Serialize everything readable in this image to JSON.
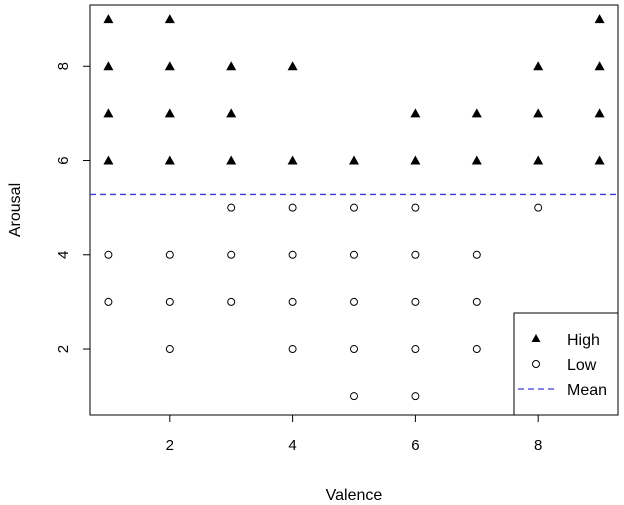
{
  "chart_data": {
    "type": "scatter",
    "title": "",
    "xlabel": "Valence",
    "ylabel": "Arousal",
    "xlim": [
      0.7,
      9.3
    ],
    "ylim": [
      0.6,
      9.3
    ],
    "xticks": [
      2,
      4,
      6,
      8
    ],
    "yticks": [
      2,
      4,
      6,
      8
    ],
    "grid": false,
    "legend_position": "bottom-right",
    "mean_line": {
      "name": "Mean",
      "y": 5.28,
      "color": "#3b3bd6",
      "style": "dashed"
    },
    "series": [
      {
        "name": "High",
        "marker": "filled-triangle",
        "color": "#000000",
        "points": [
          [
            1,
            9
          ],
          [
            1,
            8
          ],
          [
            1,
            7
          ],
          [
            1,
            6
          ],
          [
            2,
            9
          ],
          [
            2,
            8
          ],
          [
            2,
            7
          ],
          [
            2,
            6
          ],
          [
            3,
            8
          ],
          [
            3,
            7
          ],
          [
            3,
            6
          ],
          [
            4,
            8
          ],
          [
            4,
            6
          ],
          [
            5,
            6
          ],
          [
            6,
            7
          ],
          [
            6,
            6
          ],
          [
            7,
            7
          ],
          [
            7,
            6
          ],
          [
            8,
            8
          ],
          [
            8,
            7
          ],
          [
            8,
            6
          ],
          [
            9,
            9
          ],
          [
            9,
            8
          ],
          [
            9,
            7
          ],
          [
            9,
            6
          ]
        ]
      },
      {
        "name": "Low",
        "marker": "open-circle",
        "color": "#000000",
        "points": [
          [
            1,
            4
          ],
          [
            1,
            3
          ],
          [
            2,
            4
          ],
          [
            2,
            3
          ],
          [
            2,
            2
          ],
          [
            3,
            5
          ],
          [
            3,
            4
          ],
          [
            3,
            3
          ],
          [
            4,
            5
          ],
          [
            4,
            4
          ],
          [
            4,
            3
          ],
          [
            4,
            2
          ],
          [
            5,
            5
          ],
          [
            5,
            4
          ],
          [
            5,
            3
          ],
          [
            5,
            2
          ],
          [
            5,
            1
          ],
          [
            6,
            5
          ],
          [
            6,
            4
          ],
          [
            6,
            3
          ],
          [
            6,
            2
          ],
          [
            6,
            1
          ],
          [
            7,
            4
          ],
          [
            7,
            3
          ],
          [
            7,
            2
          ],
          [
            8,
            5
          ]
        ]
      }
    ],
    "legend": [
      {
        "label": "High",
        "symbol": "filled-triangle"
      },
      {
        "label": "Low",
        "symbol": "open-circle"
      },
      {
        "label": "Mean",
        "symbol": "dashed-line"
      }
    ]
  }
}
